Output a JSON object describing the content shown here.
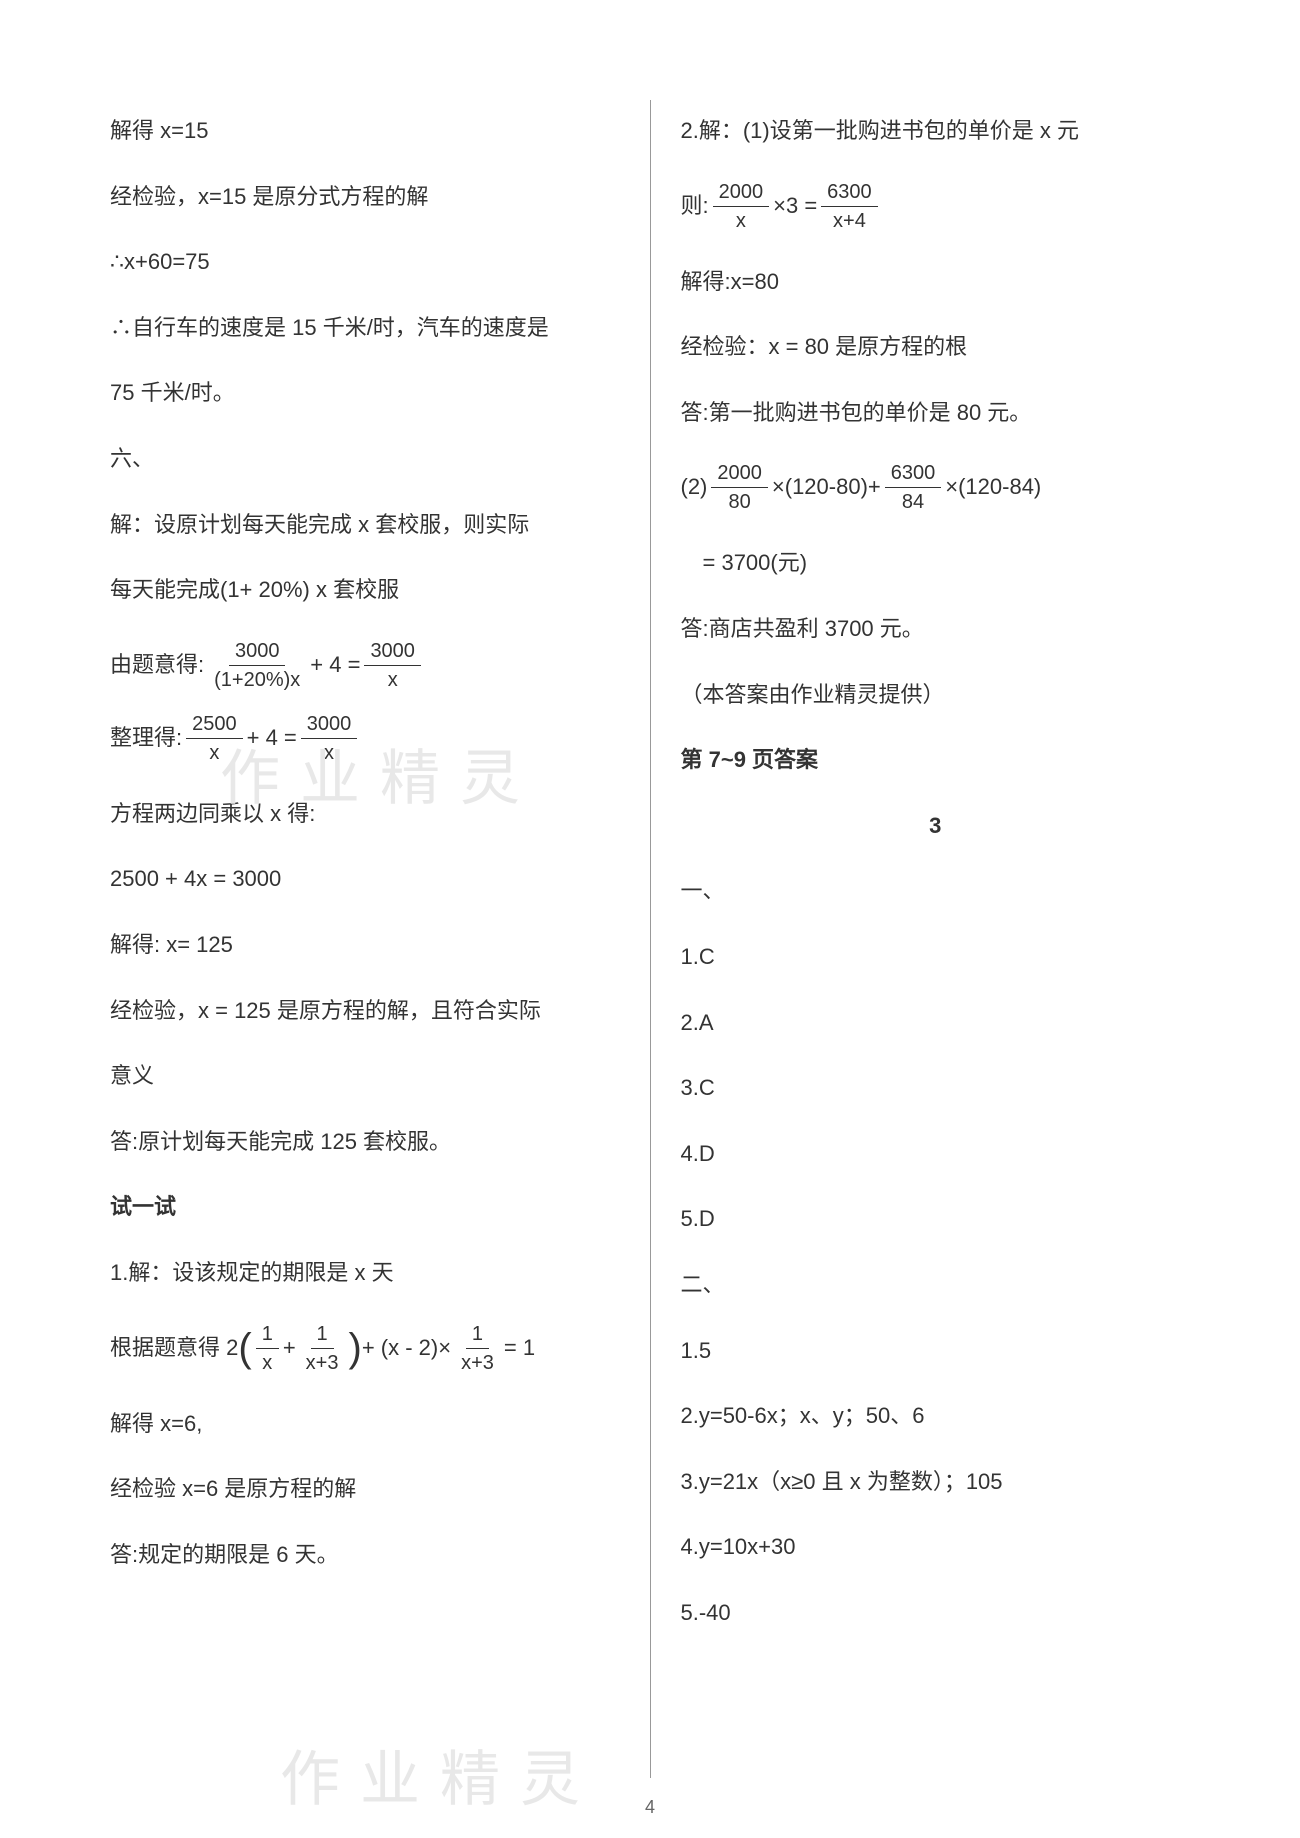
{
  "left": {
    "l1": "解得 x=15",
    "l2": "经检验，x=15 是原分式方程的解",
    "l3": "∴x+60=75",
    "l4": "∴自行车的速度是 15 千米/时，汽车的速度是",
    "l5": "75 千米/时。",
    "l6": "六、",
    "l7": "解：设原计划每天能完成 x 套校服，则实际",
    "l8": "每天能完成(1+ 20%) x 套校服",
    "f1_prefix": "由题意得:",
    "f1_num1": "3000",
    "f1_den1": "(1+20%)x",
    "f1_plus": "+ 4 =",
    "f1_num2": "3000",
    "f1_den2": "x",
    "f2_prefix": "整理得:",
    "f2_num1": "2500",
    "f2_den1": "x",
    "f2_plus": "+ 4 =",
    "f2_num2": "3000",
    "f2_den2": "x",
    "l9": "方程两边同乘以 x 得:",
    "l10": "2500 + 4x = 3000",
    "l11": "解得: x= 125",
    "l12": "经检验，x = 125 是原方程的解，且符合实际",
    "l13": "意义",
    "l14": "答:原计划每天能完成 125 套校服。",
    "l15": "试一试",
    "l16": "1.解：设该规定的期限是 x 天",
    "f3_prefix": "根据题意得 2",
    "f3_num1": "1",
    "f3_den1": "x",
    "f3_plus1": "+",
    "f3_num2": "1",
    "f3_den2": "x+3",
    "f3_mid": "+ (x - 2)×",
    "f3_num3": "1",
    "f3_den3": "x+3",
    "f3_eq": "= 1",
    "l17": "解得 x=6,",
    "l18": "经检验 x=6 是原方程的解",
    "l19": "答:规定的期限是 6 天。"
  },
  "right": {
    "l1": "2.解：(1)设第一批购进书包的单价是 x 元",
    "f4_prefix": "则:",
    "f4_num1": "2000",
    "f4_den1": "x",
    "f4_mid": "×3 =",
    "f4_num2": "6300",
    "f4_den2": "x+4",
    "l2": "解得:x=80",
    "l3": "经检验：x = 80 是原方程的根",
    "l4": "答:第一批购进书包的单价是 80 元。",
    "f5_prefix": "(2)",
    "f5_num1": "2000",
    "f5_den1": "80",
    "f5_mid1": "×(120-80)+",
    "f5_num2": "6300",
    "f5_den2": "84",
    "f5_mid2": "×(120-84)",
    "l5": "　= 3700(元)",
    "l6": "答:商店共盈利 3700 元。",
    "l7": "（本答案由作业精灵提供）",
    "l8": "第 7~9 页答案",
    "l9": "3",
    "l10": "一、",
    "l11": "1.C",
    "l12": "2.A",
    "l13": "3.C",
    "l14": "4.D",
    "l15": "5.D",
    "l16": "二、",
    "l17": "1.5",
    "l18": "2.y=50-6x；x、y；50、6",
    "l19": "3.y=21x（x≥0 且 x 为整数）；105",
    "l20": "4.y=10x+30",
    "l21": "5.-40"
  },
  "watermark": "作业精灵",
  "page_num": "4"
}
